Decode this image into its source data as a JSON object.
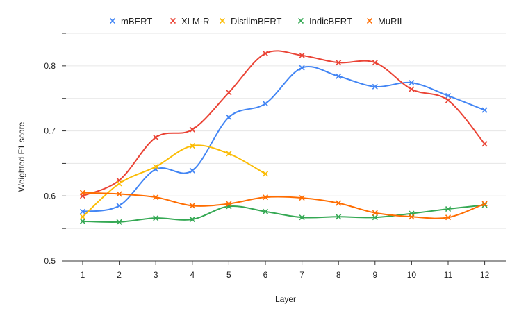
{
  "chart_data": {
    "type": "line",
    "title": "",
    "xlabel": "Layer",
    "ylabel": "Weighted F1 score",
    "categories": [
      "1",
      "2",
      "3",
      "4",
      "5",
      "6",
      "7",
      "8",
      "9",
      "10",
      "11",
      "12"
    ],
    "x": [
      1,
      2,
      3,
      4,
      5,
      6,
      7,
      8,
      9,
      10,
      11,
      12
    ],
    "ylim": [
      0.5,
      0.85
    ],
    "yticks": [
      0.5,
      0.6,
      0.7,
      0.8
    ],
    "ytick_labels": [
      "0.5",
      "0.6",
      "0.7",
      "0.8"
    ],
    "grid": true,
    "legend_position": "top",
    "series": [
      {
        "name": "mBERT",
        "color": "#4285F4",
        "values": [
          0.576,
          0.585,
          0.641,
          0.639,
          0.721,
          0.742,
          0.797,
          0.784,
          0.768,
          0.774,
          0.754,
          0.732
        ]
      },
      {
        "name": "XLM-R",
        "color": "#EA4335",
        "values": [
          0.6,
          0.624,
          0.69,
          0.702,
          0.759,
          0.819,
          0.816,
          0.805,
          0.805,
          0.764,
          0.747,
          0.68
        ]
      },
      {
        "name": "DistilmBERT",
        "color": "#FBBC04",
        "values": [
          0.568,
          0.619,
          0.645,
          0.677,
          0.665,
          0.634,
          null,
          null,
          null,
          null,
          null,
          null
        ]
      },
      {
        "name": "IndicBERT",
        "color": "#34A853",
        "values": [
          0.561,
          0.56,
          0.566,
          0.564,
          0.584,
          0.576,
          0.567,
          0.568,
          0.567,
          0.573,
          0.58,
          0.586
        ]
      },
      {
        "name": "MuRIL",
        "color": "#FF6D01",
        "values": [
          0.605,
          0.603,
          0.598,
          0.585,
          0.588,
          0.598,
          0.597,
          0.589,
          0.574,
          0.568,
          0.567,
          0.588
        ]
      }
    ]
  }
}
